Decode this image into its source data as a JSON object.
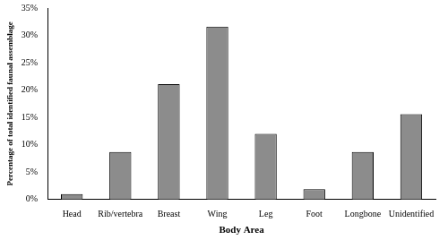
{
  "chart_data": {
    "type": "bar",
    "x_label": "Body Area",
    "y_label": "Percentage of total identified faunal assemblage",
    "categories": [
      "Head",
      "Rib/vertebra",
      "Breast",
      "Wing",
      "Leg",
      "Foot",
      "Longbone",
      "Unidentified"
    ],
    "values": [
      1.0,
      8.7,
      21.1,
      31.6,
      12.0,
      1.9,
      8.7,
      15.6
    ],
    "color": "#8c8c8c",
    "ylim": [
      0,
      35
    ],
    "yticks": [
      {
        "value": 0,
        "label": "0%"
      },
      {
        "value": 5,
        "label": "5%"
      },
      {
        "value": 10,
        "label": "10%"
      },
      {
        "value": 15,
        "label": "15%"
      },
      {
        "value": 20,
        "label": "20%"
      },
      {
        "value": 25,
        "label": "25%"
      },
      {
        "value": 30,
        "label": "30%"
      },
      {
        "value": 35,
        "label": "35%"
      }
    ],
    "grid": false
  }
}
